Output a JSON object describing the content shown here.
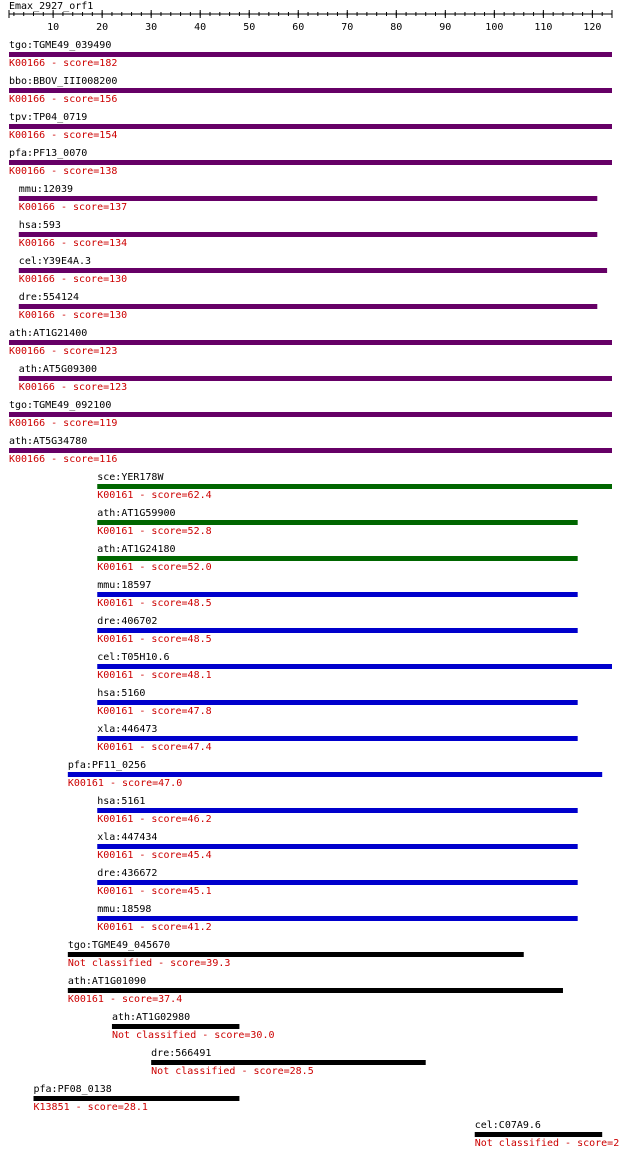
{
  "chart_data": {
    "type": "alignment",
    "title": "Emax_2927_orf1",
    "xlim": [
      1,
      124
    ],
    "xticks": [
      10,
      20,
      30,
      40,
      50,
      60,
      70,
      80,
      90,
      100,
      110,
      120
    ],
    "hits": [
      {
        "label": "tgo:TGME49_039490",
        "annotation": "K00166 - score=182",
        "start": 1,
        "end": 124,
        "color": "#660066"
      },
      {
        "label": "bbo:BBOV_III008200",
        "annotation": "K00166 - score=156",
        "start": 1,
        "end": 124,
        "color": "#660066"
      },
      {
        "label": "tpv:TP04_0719",
        "annotation": "K00166 - score=154",
        "start": 1,
        "end": 124,
        "color": "#660066"
      },
      {
        "label": "pfa:PF13_0070",
        "annotation": "K00166 - score=138",
        "start": 1,
        "end": 124,
        "color": "#660066"
      },
      {
        "label": "mmu:12039",
        "annotation": "K00166 - score=137",
        "start": 3,
        "end": 121,
        "color": "#660066"
      },
      {
        "label": "hsa:593",
        "annotation": "K00166 - score=134",
        "start": 3,
        "end": 121,
        "color": "#660066"
      },
      {
        "label": "cel:Y39E4A.3",
        "annotation": "K00166 - score=130",
        "start": 3,
        "end": 123,
        "color": "#660066"
      },
      {
        "label": "dre:554124",
        "annotation": "K00166 - score=130",
        "start": 3,
        "end": 121,
        "color": "#660066"
      },
      {
        "label": "ath:AT1G21400",
        "annotation": "K00166 - score=123",
        "start": 1,
        "end": 124,
        "color": "#660066"
      },
      {
        "label": "ath:AT5G09300",
        "annotation": "K00166 - score=123",
        "start": 3,
        "end": 124,
        "color": "#660066"
      },
      {
        "label": "tgo:TGME49_092100",
        "annotation": "K00166 - score=119",
        "start": 1,
        "end": 124,
        "color": "#660066"
      },
      {
        "label": "ath:AT5G34780",
        "annotation": "K00166 - score=116",
        "start": 1,
        "end": 124,
        "color": "#660066"
      },
      {
        "label": "sce:YER178W",
        "annotation": "K00161 - score=62.4",
        "start": 19,
        "end": 124,
        "color": "#006600"
      },
      {
        "label": "ath:AT1G59900",
        "annotation": "K00161 - score=52.8",
        "start": 19,
        "end": 117,
        "color": "#006600"
      },
      {
        "label": "ath:AT1G24180",
        "annotation": "K00161 - score=52.0",
        "start": 19,
        "end": 117,
        "color": "#006600"
      },
      {
        "label": "mmu:18597",
        "annotation": "K00161 - score=48.5",
        "start": 19,
        "end": 117,
        "color": "#0000cc"
      },
      {
        "label": "dre:406702",
        "annotation": "K00161 - score=48.5",
        "start": 19,
        "end": 117,
        "color": "#0000cc"
      },
      {
        "label": "cel:T05H10.6",
        "annotation": "K00161 - score=48.1",
        "start": 19,
        "end": 124,
        "color": "#0000cc"
      },
      {
        "label": "hsa:5160",
        "annotation": "K00161 - score=47.8",
        "start": 19,
        "end": 117,
        "color": "#0000cc"
      },
      {
        "label": "xla:446473",
        "annotation": "K00161 - score=47.4",
        "start": 19,
        "end": 117,
        "color": "#0000cc"
      },
      {
        "label": "pfa:PF11_0256",
        "annotation": "K00161 - score=47.0",
        "start": 13,
        "end": 122,
        "color": "#0000cc"
      },
      {
        "label": "hsa:5161",
        "annotation": "K00161 - score=46.2",
        "start": 19,
        "end": 117,
        "color": "#0000cc"
      },
      {
        "label": "xla:447434",
        "annotation": "K00161 - score=45.4",
        "start": 19,
        "end": 117,
        "color": "#0000cc"
      },
      {
        "label": "dre:436672",
        "annotation": "K00161 - score=45.1",
        "start": 19,
        "end": 117,
        "color": "#0000cc"
      },
      {
        "label": "mmu:18598",
        "annotation": "K00161 - score=41.2",
        "start": 19,
        "end": 117,
        "color": "#0000cc"
      },
      {
        "label": "tgo:TGME49_045670",
        "annotation": "Not classified - score=39.3",
        "start": 13,
        "end": 106,
        "color": "#000000"
      },
      {
        "label": "ath:AT1G01090",
        "annotation": "K00161 - score=37.4",
        "start": 13,
        "end": 114,
        "color": "#000000"
      },
      {
        "label": "ath:AT1G02980",
        "annotation": "Not classified - score=30.0",
        "start": 22,
        "end": 48,
        "color": "#000000"
      },
      {
        "label": "dre:566491",
        "annotation": "Not classified - score=28.5",
        "start": 30,
        "end": 86,
        "color": "#000000"
      },
      {
        "label": "pfa:PF08_0138",
        "annotation": "K13851 - score=28.1",
        "start": 6,
        "end": 48,
        "color": "#000000"
      },
      {
        "label": "cel:C07A9.6",
        "annotation": "Not classified - score=2",
        "start": 96,
        "end": 122,
        "color": "#000000"
      }
    ]
  }
}
